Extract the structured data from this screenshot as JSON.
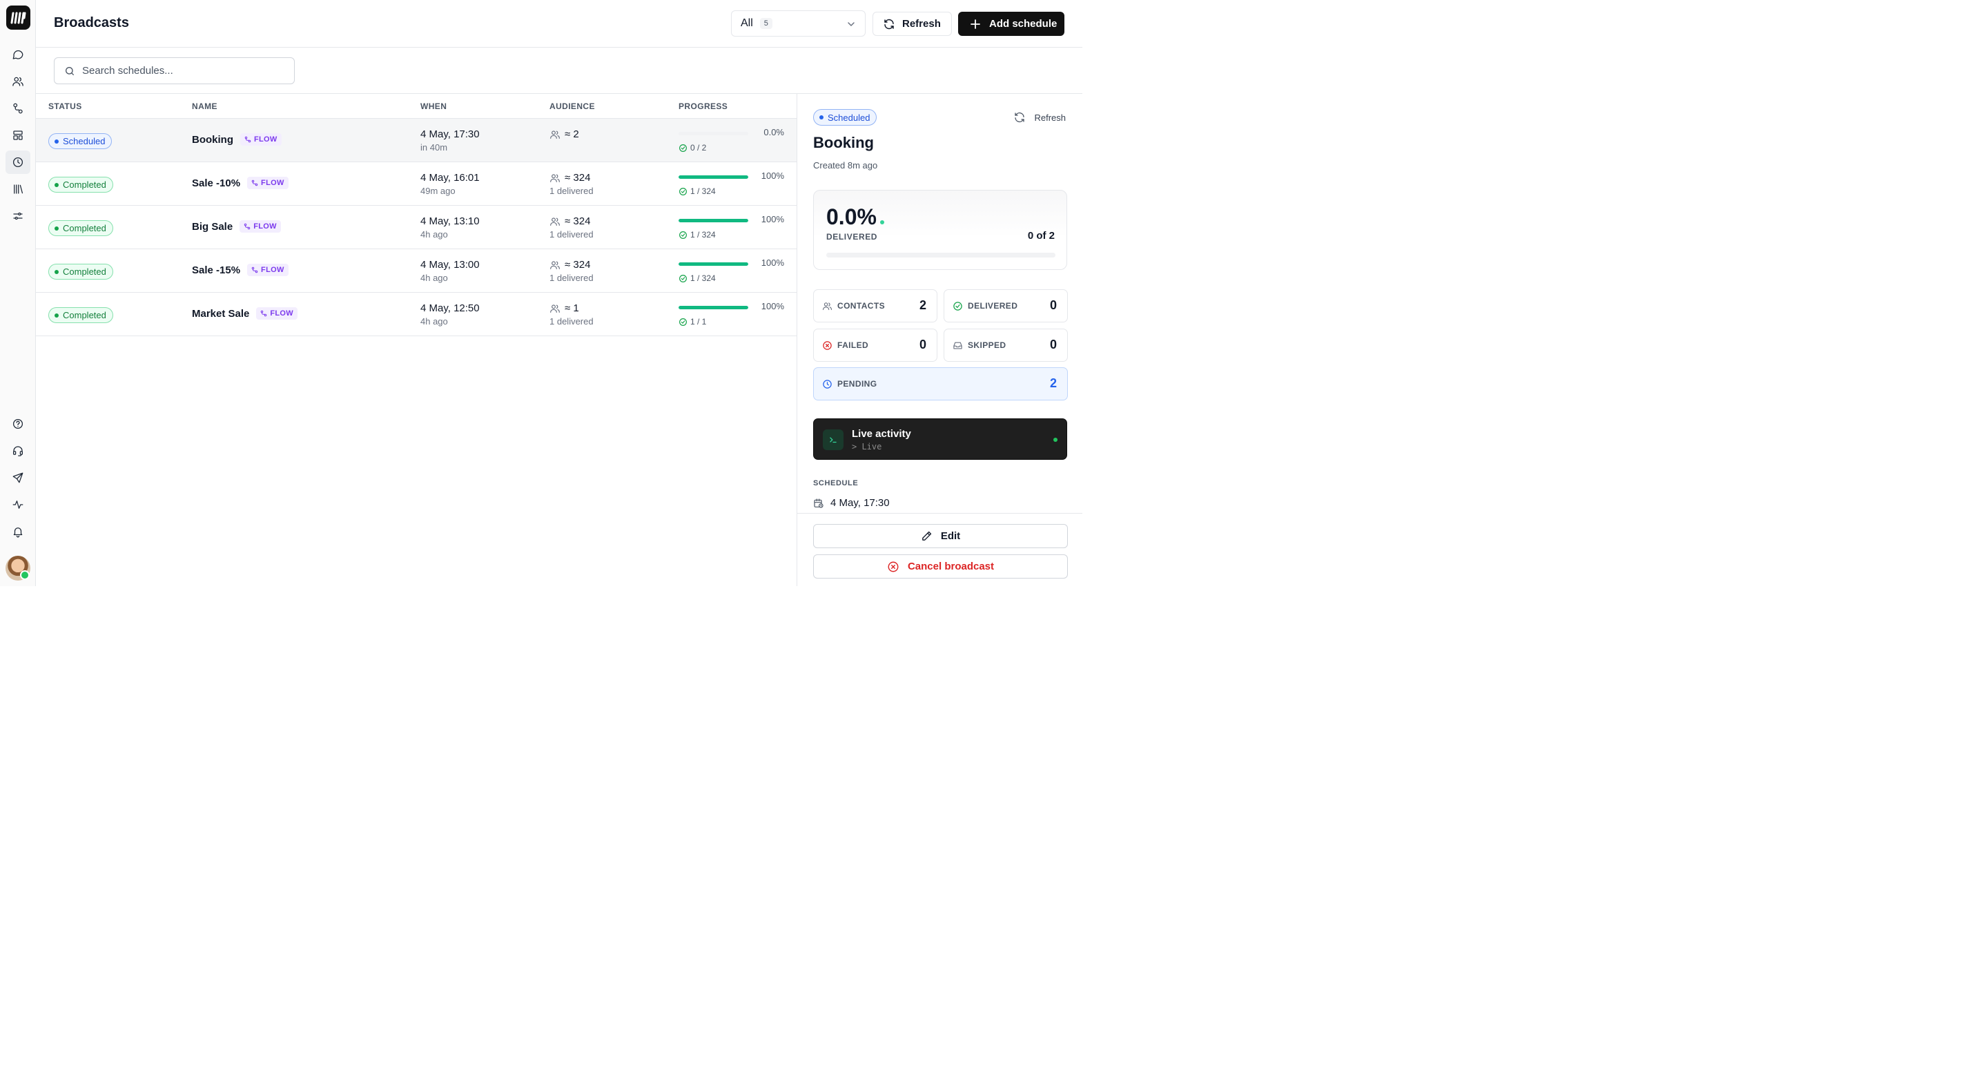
{
  "header": {
    "title": "Broadcasts",
    "filter_value": "All",
    "filter_count": "5",
    "refresh_label": "Refresh",
    "add_label": "Add schedule"
  },
  "search": {
    "placeholder": "Search schedules..."
  },
  "table": {
    "columns": [
      "STATUS",
      "NAME",
      "WHEN",
      "AUDIENCE",
      "PROGRESS"
    ],
    "rows": [
      {
        "status": "Scheduled",
        "name": "Booking",
        "tag": "FLOW",
        "when": "4 May, 17:30",
        "when_sub": "in 40m",
        "audience": "≈ 2",
        "audience_sub": "",
        "progress": 0.0,
        "percent": "0.0%",
        "count": "0 / 2"
      },
      {
        "status": "Completed",
        "name": "Sale -10%",
        "tag": "FLOW",
        "when": "4 May, 16:01",
        "when_sub": "49m ago",
        "audience": "≈ 324",
        "audience_sub": "1 delivered",
        "progress": 1.0,
        "percent": "100%",
        "count": "1 / 324"
      },
      {
        "status": "Completed",
        "name": "Big Sale",
        "tag": "FLOW",
        "when": "4 May, 13:10",
        "when_sub": "4h ago",
        "audience": "≈ 324",
        "audience_sub": "1 delivered",
        "progress": 1.0,
        "percent": "100%",
        "count": "1 / 324"
      },
      {
        "status": "Completed",
        "name": "Sale -15%",
        "tag": "FLOW",
        "when": "4 May, 13:00",
        "when_sub": "4h ago",
        "audience": "≈ 324",
        "audience_sub": "1 delivered",
        "progress": 1.0,
        "percent": "100%",
        "count": "1 / 324"
      },
      {
        "status": "Completed",
        "name": "Market Sale",
        "tag": "FLOW",
        "when": "4 May, 12:50",
        "when_sub": "4h ago",
        "audience": "≈ 1",
        "audience_sub": "1 delivered",
        "progress": 1.0,
        "percent": "100%",
        "count": "1 / 1"
      }
    ]
  },
  "panel": {
    "status": "Scheduled",
    "refresh_label": "Refresh",
    "title": "Booking",
    "created": "Created 8m ago",
    "delivered_pct": "0.0%",
    "delivered_label": "DELIVERED",
    "delivered_of": "0 of 2",
    "delivered_progress": 0.0,
    "stats": {
      "contacts": {
        "label": "CONTACTS",
        "value": "2"
      },
      "delivered": {
        "label": "DELIVERED",
        "value": "0"
      },
      "failed": {
        "label": "FAILED",
        "value": "0"
      },
      "skipped": {
        "label": "SKIPPED",
        "value": "0"
      },
      "pending": {
        "label": "PENDING",
        "value": "2"
      }
    },
    "live": {
      "title": "Live activity",
      "sub": "> Live"
    },
    "schedule_label": "SCHEDULE",
    "schedule_when": "4 May, 17:30",
    "edit_label": "Edit",
    "cancel_label": "Cancel broadcast"
  },
  "colors": {
    "accent": "#111111",
    "progress_fill": "#10b981",
    "scheduled": "#2563eb",
    "completed": "#16a34a",
    "danger": "#dc2626",
    "flow_tag": "#7c3aed"
  },
  "icons": {
    "sidebar": [
      "chat-icon",
      "users-icon",
      "flow-icon",
      "templates-icon",
      "clock-icon",
      "library-icon",
      "settings-sliders-icon",
      "help-icon",
      "headset-icon",
      "send-icon",
      "activity-icon",
      "bell-icon"
    ]
  }
}
